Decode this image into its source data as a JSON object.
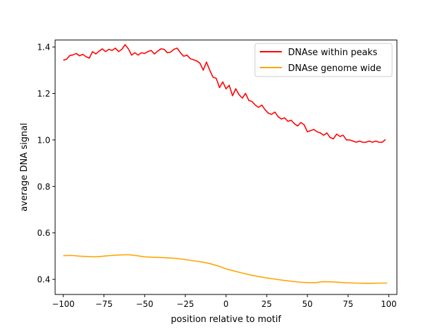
{
  "chart_data": {
    "type": "line",
    "xlabel": "position relative to motif",
    "ylabel": "average DNA signal",
    "xlim": [
      -105,
      105
    ],
    "ylim": [
      0.335,
      1.43
    ],
    "xticks": [
      -100,
      -75,
      -50,
      -25,
      0,
      25,
      50,
      75,
      100
    ],
    "xtick_labels": [
      "−100",
      "−75",
      "−50",
      "−25",
      "0",
      "25",
      "50",
      "75",
      "100"
    ],
    "yticks": [
      0.4,
      0.6,
      0.8,
      1.0,
      1.2,
      1.4
    ],
    "ytick_labels": [
      "0.4",
      "0.6",
      "0.8",
      "1.0",
      "1.2",
      "1.4"
    ],
    "grid": false,
    "legend_position": "top-right",
    "series": [
      {
        "name": "DNAse within peaks",
        "color": "#ff0000",
        "x": [
          -100,
          -98,
          -96,
          -94,
          -92,
          -90,
          -88,
          -86,
          -84,
          -82,
          -80,
          -78,
          -76,
          -74,
          -72,
          -70,
          -68,
          -66,
          -64,
          -62,
          -60,
          -58,
          -56,
          -54,
          -52,
          -50,
          -48,
          -46,
          -44,
          -42,
          -40,
          -38,
          -36,
          -34,
          -32,
          -30,
          -28,
          -26,
          -24,
          -22,
          -20,
          -18,
          -16,
          -14,
          -12,
          -10,
          -8,
          -6,
          -4,
          -2,
          0,
          2,
          4,
          6,
          8,
          10,
          12,
          14,
          16,
          18,
          20,
          22,
          24,
          26,
          28,
          30,
          32,
          34,
          36,
          38,
          40,
          42,
          44,
          46,
          48,
          50,
          52,
          54,
          56,
          58,
          60,
          62,
          64,
          66,
          68,
          70,
          72,
          74,
          76,
          78,
          80,
          82,
          84,
          86,
          88,
          90,
          92,
          94,
          96,
          98
        ],
        "values": [
          1.343,
          1.347,
          1.363,
          1.366,
          1.372,
          1.362,
          1.368,
          1.358,
          1.352,
          1.38,
          1.37,
          1.382,
          1.392,
          1.38,
          1.39,
          1.385,
          1.395,
          1.38,
          1.39,
          1.41,
          1.392,
          1.365,
          1.375,
          1.365,
          1.375,
          1.372,
          1.38,
          1.385,
          1.37,
          1.382,
          1.392,
          1.39,
          1.375,
          1.378,
          1.39,
          1.395,
          1.375,
          1.36,
          1.365,
          1.35,
          1.345,
          1.34,
          1.33,
          1.3,
          1.335,
          1.3,
          1.27,
          1.265,
          1.225,
          1.25,
          1.22,
          1.235,
          1.19,
          1.22,
          1.195,
          1.18,
          1.2,
          1.17,
          1.165,
          1.15,
          1.14,
          1.15,
          1.13,
          1.115,
          1.11,
          1.12,
          1.1,
          1.09,
          1.095,
          1.08,
          1.085,
          1.07,
          1.06,
          1.075,
          1.065,
          1.035,
          1.04,
          1.045,
          1.035,
          1.03,
          1.02,
          1.03,
          1.01,
          1.005,
          1.025,
          1.015,
          1.02,
          1.0,
          1.0,
          0.995,
          0.99,
          0.995,
          0.99,
          0.99,
          0.995,
          0.99,
          0.995,
          0.99,
          0.99,
          1.002
        ]
      },
      {
        "name": "DNAse genome wide",
        "color": "#ffa500",
        "x": [
          -100,
          -95,
          -90,
          -85,
          -80,
          -75,
          -70,
          -65,
          -60,
          -55,
          -50,
          -45,
          -40,
          -35,
          -30,
          -25,
          -20,
          -15,
          -10,
          -5,
          0,
          5,
          10,
          15,
          20,
          25,
          30,
          35,
          40,
          45,
          50,
          55,
          60,
          65,
          70,
          75,
          80,
          85,
          90,
          95,
          99
        ],
        "values": [
          0.502,
          0.503,
          0.5,
          0.498,
          0.497,
          0.5,
          0.503,
          0.505,
          0.506,
          0.502,
          0.497,
          0.495,
          0.494,
          0.492,
          0.49,
          0.485,
          0.48,
          0.475,
          0.468,
          0.458,
          0.445,
          0.436,
          0.427,
          0.419,
          0.412,
          0.406,
          0.401,
          0.396,
          0.392,
          0.388,
          0.386,
          0.386,
          0.39,
          0.389,
          0.387,
          0.385,
          0.384,
          0.383,
          0.383,
          0.384,
          0.384
        ]
      }
    ]
  }
}
